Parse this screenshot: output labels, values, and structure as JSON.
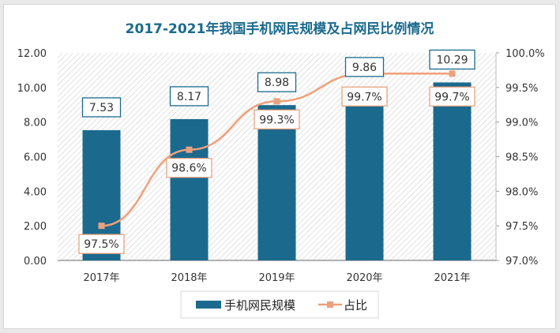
{
  "chart_data": {
    "type": "bar+line",
    "title": "2017-2021年我国手机网民规模及占网民比例情况",
    "categories": [
      "2017年",
      "2018年",
      "2019年",
      "2020年",
      "2021年"
    ],
    "series": [
      {
        "name": "手机网民规模",
        "type": "bar",
        "axis": "left",
        "values": [
          7.53,
          8.17,
          8.98,
          9.86,
          10.29
        ],
        "labels": [
          "7.53",
          "8.17",
          "8.98",
          "9.86",
          "10.29"
        ],
        "color": "#1b6a8e"
      },
      {
        "name": "占比",
        "type": "line",
        "axis": "right",
        "values": [
          97.5,
          98.6,
          99.3,
          99.7,
          99.7
        ],
        "labels": [
          "97.5%",
          "98.6%",
          "99.3%",
          "99.7%",
          "99.7%"
        ],
        "color": "#f0a07a"
      }
    ],
    "left_axis": {
      "ylim": [
        0,
        12
      ],
      "ticks": [
        "0.00",
        "2.00",
        "4.00",
        "6.00",
        "8.00",
        "10.00",
        "12.00"
      ]
    },
    "right_axis": {
      "ylim": [
        97,
        100
      ],
      "ticks": [
        "97.0%",
        "97.5%",
        "98.0%",
        "98.5%",
        "99.0%",
        "99.5%",
        "100.0%"
      ]
    },
    "legend": "bottom",
    "grid": false,
    "colors": {
      "title": "#1b6a8e",
      "label_border_bar": "#1b6a8e",
      "label_border_line": "#e9a27f"
    }
  }
}
